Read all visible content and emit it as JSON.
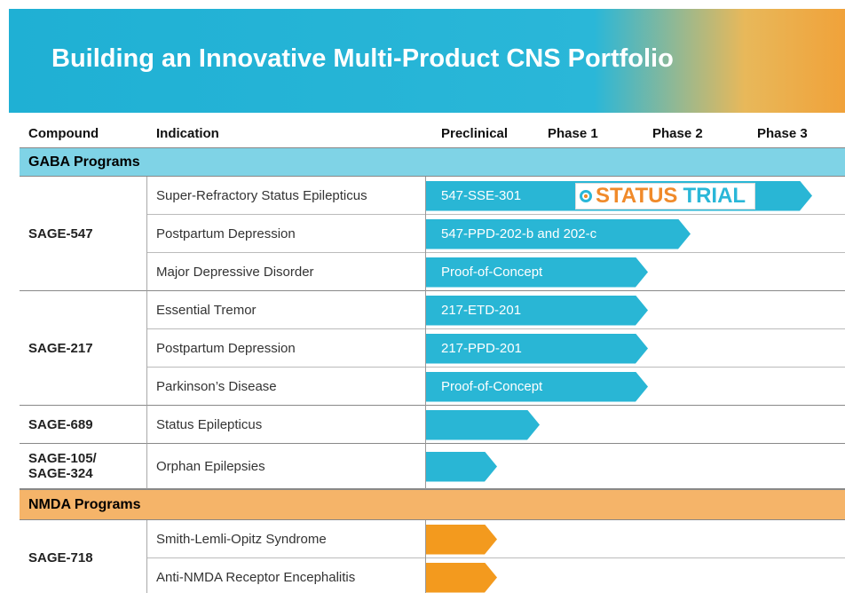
{
  "header": {
    "title": "Building an Innovative Multi-Product CNS Portfolio"
  },
  "columns": [
    "Compound",
    "Indication",
    "Preclinical",
    "Phase 1",
    "Phase 2",
    "Phase 3"
  ],
  "groups": [
    {
      "name": "GABA Programs",
      "compounds": [
        {
          "name_lines": [
            "SAGE-547"
          ],
          "indications": [
            {
              "name": "Super-Refractory Status Epilepticus",
              "label": "547-SSE-301",
              "badge": [
                "STATUS",
                "TRIAL"
              ]
            },
            {
              "name": "Postpartum Depression",
              "label": "547-PPD-202-b and 202-c"
            },
            {
              "name": "Major Depressive Disorder",
              "label": "Proof-of-Concept"
            }
          ]
        },
        {
          "name_lines": [
            "SAGE-217"
          ],
          "indications": [
            {
              "name": "Essential Tremor",
              "label": "217-ETD-201"
            },
            {
              "name": "Postpartum Depression",
              "label": "217-PPD-201"
            },
            {
              "name": "Parkinson’s Disease",
              "label": "Proof-of-Concept"
            }
          ]
        },
        {
          "name_lines": [
            "SAGE-689"
          ],
          "indications": [
            {
              "name": "Status Epilepticus"
            }
          ]
        },
        {
          "name_lines": [
            "SAGE-105/",
            "SAGE-324"
          ],
          "indications": [
            {
              "name": "Orphan Epilepsies"
            }
          ]
        }
      ]
    },
    {
      "name": "NMDA Programs",
      "compounds": [
        {
          "name_lines": [
            "SAGE-718"
          ],
          "indications": [
            {
              "name": "Smith-Lemli-Opitz Syndrome"
            },
            {
              "name": "Anti-NMDA Receptor Encephalitis"
            }
          ]
        }
      ]
    }
  ]
}
